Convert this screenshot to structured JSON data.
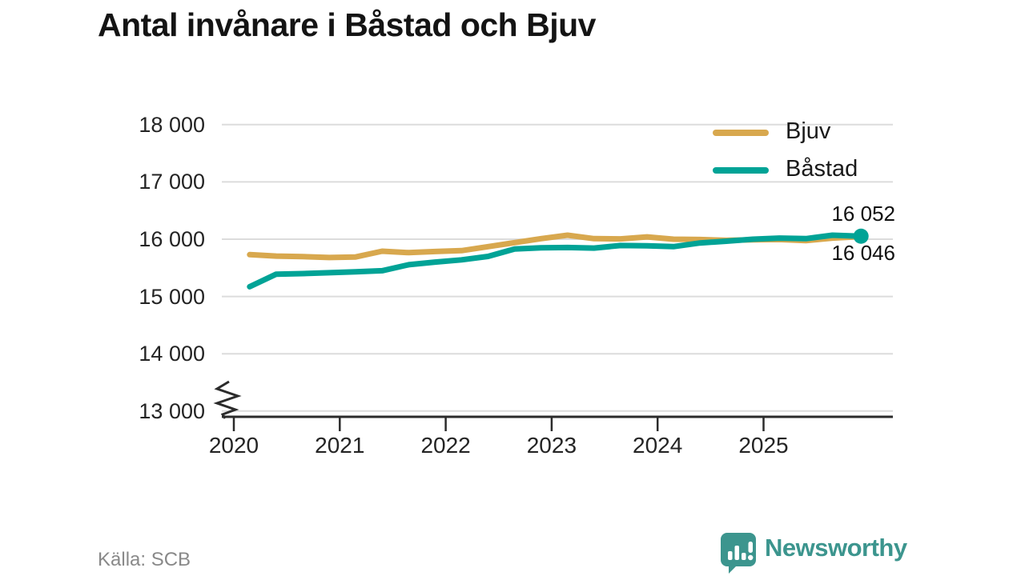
{
  "title": "Antal invånare i Båstad och Bjuv",
  "legend": {
    "items": [
      {
        "label": "Bjuv",
        "color": "#d8a84e"
      },
      {
        "label": "Båstad",
        "color": "#00a396"
      }
    ]
  },
  "annotations": {
    "end_label_top": "16 052",
    "end_label_bottom": "16 046"
  },
  "y_axis": {
    "ticks": [
      "18 000",
      "17 000",
      "16 000",
      "15 000",
      "14 000",
      "13 000"
    ],
    "axis_break": true
  },
  "x_axis": {
    "ticks": [
      "2020",
      "2021",
      "2022",
      "2023",
      "2024",
      "2025"
    ]
  },
  "footer": {
    "source": "Källa: SCB",
    "brand": "Newsworthy"
  },
  "colors": {
    "grid": "#dcdcdc",
    "axis": "#2b2b2b",
    "logo_teal": "#3c958e"
  },
  "chart_data": {
    "type": "line",
    "title": "Antal invånare i Båstad och Bjuv",
    "source": "Källa: SCB",
    "x_unit": "decimal year, quarterly observations",
    "x": [
      2020.15,
      2020.4,
      2020.65,
      2020.9,
      2021.15,
      2021.4,
      2021.65,
      2021.9,
      2022.15,
      2022.4,
      2022.65,
      2022.9,
      2023.15,
      2023.4,
      2023.65,
      2023.9,
      2024.15,
      2024.4,
      2024.65,
      2024.9,
      2025.15,
      2025.4,
      2025.65,
      2025.92
    ],
    "periods": [
      "2020 Q1",
      "2020 Q2",
      "2020 Q3",
      "2020 Q4",
      "2021 Q1",
      "2021 Q2",
      "2021 Q3",
      "2021 Q4",
      "2022 Q1",
      "2022 Q2",
      "2022 Q3",
      "2022 Q4",
      "2023 Q1",
      "2023 Q2",
      "2023 Q3",
      "2023 Q4",
      "2024 Q1",
      "2024 Q2",
      "2024 Q3",
      "2024 Q4",
      "2025 Q1",
      "2025 Q2",
      "2025 Q3",
      "2025 Q4"
    ],
    "series": [
      {
        "name": "Bjuv",
        "color": "#d8a84e",
        "end_value": 16046,
        "end_label": "16 046",
        "end_dot": false,
        "values": [
          15730,
          15705,
          15695,
          15680,
          15690,
          15790,
          15765,
          15785,
          15800,
          15870,
          15940,
          16010,
          16070,
          16010,
          16005,
          16040,
          16000,
          15995,
          15980,
          15990,
          15995,
          15975,
          16020,
          16046
        ]
      },
      {
        "name": "Båstad",
        "color": "#00a396",
        "end_value": 16052,
        "end_label": "16 052",
        "end_dot": true,
        "values": [
          15170,
          15390,
          15400,
          15415,
          15430,
          15450,
          15555,
          15600,
          15640,
          15700,
          15830,
          15850,
          15855,
          15845,
          15890,
          15885,
          15870,
          15935,
          15965,
          16000,
          16020,
          16010,
          16070,
          16052
        ]
      }
    ],
    "ylim": [
      13000,
      18000
    ],
    "yticks": [
      18000,
      17000,
      16000,
      15000,
      14000,
      13000
    ],
    "xticks": [
      2020,
      2021,
      2022,
      2023,
      2024,
      2025
    ],
    "axis_break": true,
    "grid": "horizontal",
    "legend_position": "top-right"
  }
}
